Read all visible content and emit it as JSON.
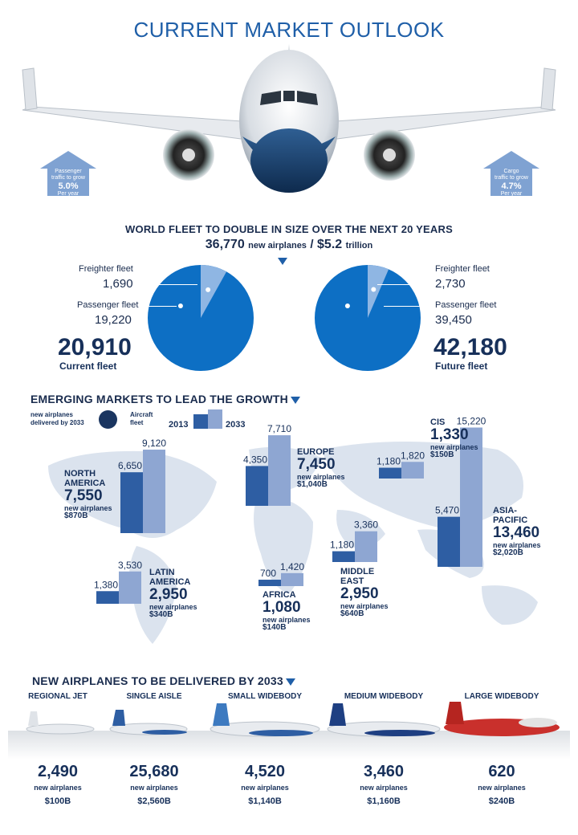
{
  "title": "CURRENT MARKET OUTLOOK",
  "arrows": {
    "passenger": {
      "line1": "Passenger",
      "line2": "traffic to grow",
      "pct": "5.0%",
      "unit": "Per year"
    },
    "cargo": {
      "line1": "Cargo",
      "line2": "traffic to grow",
      "pct": "4.7%",
      "unit": "Per year"
    }
  },
  "fleet_section": {
    "heading": "WORLD FLEET TO DOUBLE IN SIZE OVER THE NEXT 20 YEARS",
    "new_airplanes": "36,770",
    "new_airplanes_label": "new airplanes",
    "slash": "/",
    "value": "$5.2",
    "value_unit": "trillion"
  },
  "growth_section": {
    "heading": "EMERGING MARKETS TO LEAD THE GROWTH",
    "legend_new": "new airplanes delivered by 2033",
    "legend_fleet": "Aircraft fleet",
    "legend_2013": "2013",
    "legend_2033": "2033",
    "sub_label": "new airplanes"
  },
  "delivered_section": {
    "heading": "NEW AIRPLANES TO BE DELIVERED BY 2033",
    "sub_label": "new airplanes"
  },
  "colors": {
    "dark_bar": "#2e5ea3",
    "light_bar": "#8ea6d2",
    "pie_main": "#0d6fc4",
    "pie_slice": "#8fb6e3",
    "map": "#dbe3ee",
    "title": "#1f5fa8"
  },
  "chart_data": [
    {
      "type": "pie",
      "name": "Current fleet",
      "labels": [
        "Freighter fleet",
        "Passenger fleet"
      ],
      "values": [
        1690,
        19220
      ],
      "total": "20,910",
      "total_label": "Current fleet",
      "value_labels": [
        "1,690",
        "19,220"
      ]
    },
    {
      "type": "pie",
      "name": "Future fleet",
      "labels": [
        "Freighter fleet",
        "Passenger fleet"
      ],
      "values": [
        2730,
        39450
      ],
      "total": "42,180",
      "total_label": "Future fleet",
      "value_labels": [
        "2,730",
        "39,450"
      ]
    },
    {
      "type": "bar",
      "series": [
        {
          "name": "2013"
        },
        {
          "name": "2033"
        }
      ],
      "regions": [
        {
          "name": "NORTH AMERICA",
          "fleet_2013": 6650,
          "fleet_2033": 9120,
          "l2013": "6,650",
          "l2033": "9,120",
          "new": "7,550",
          "value": "$870B"
        },
        {
          "name": "EUROPE",
          "fleet_2013": 4350,
          "fleet_2033": 7710,
          "l2013": "4,350",
          "l2033": "7,710",
          "new": "7,450",
          "value": "$1,040B"
        },
        {
          "name": "CIS",
          "fleet_2013": 1180,
          "fleet_2033": 1820,
          "l2013": "1,180",
          "l2033": "1,820",
          "new": "1,330",
          "value": "$150B"
        },
        {
          "name": "ASIA-PACIFIC",
          "fleet_2013": 5470,
          "fleet_2033": 15220,
          "l2013": "5,470",
          "l2033": "15,220",
          "new": "13,460",
          "value": "$2,020B"
        },
        {
          "name": "MIDDLE EAST",
          "fleet_2013": 1180,
          "fleet_2033": 3360,
          "l2013": "1,180",
          "l2033": "3,360",
          "new": "2,950",
          "value": "$640B"
        },
        {
          "name": "AFRICA",
          "fleet_2013": 700,
          "fleet_2033": 1420,
          "l2013": "700",
          "l2033": "1,420",
          "new": "1,080",
          "value": "$140B"
        },
        {
          "name": "LATIN AMERICA",
          "fleet_2013": 1380,
          "fleet_2033": 3530,
          "l2013": "1,380",
          "l2033": "3,530",
          "new": "2,950",
          "value": "$340B"
        }
      ]
    },
    {
      "type": "table",
      "categories": [
        {
          "name": "REGIONAL JET",
          "new": "2,490",
          "value": "$100B"
        },
        {
          "name": "SINGLE AISLE",
          "new": "25,680",
          "value": "$2,560B"
        },
        {
          "name": "SMALL WIDEBODY",
          "new": "4,520",
          "value": "$1,140B"
        },
        {
          "name": "MEDIUM WIDEBODY",
          "new": "3,460",
          "value": "$1,160B"
        },
        {
          "name": "LARGE WIDEBODY",
          "new": "620",
          "value": "$240B"
        }
      ]
    }
  ]
}
